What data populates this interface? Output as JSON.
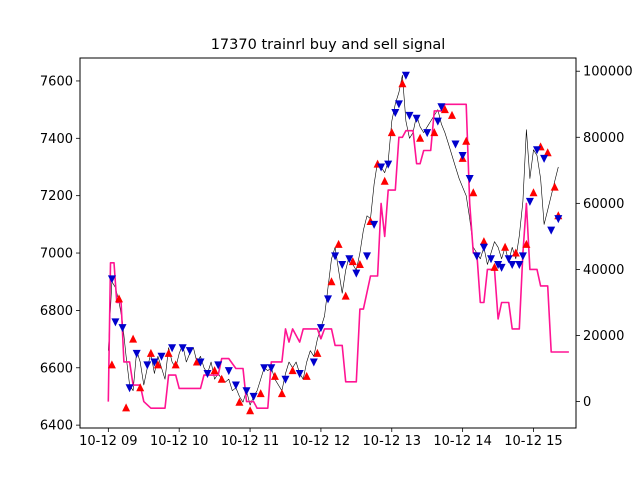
{
  "chart_data": {
    "type": "line",
    "title": "17370 trainrl buy and sell signal",
    "x_tick_labels": [
      "10-12 09",
      "10-12 10",
      "10-12 11",
      "10-12 12",
      "10-12 13",
      "10-12 14",
      "10-12 15"
    ],
    "x_ticks": [
      9,
      10,
      11,
      12,
      13,
      14,
      15
    ],
    "xlim": [
      8.6,
      15.6
    ],
    "y_left": {
      "ylim": [
        6390,
        7680
      ],
      "ticks": [
        6400,
        6600,
        6800,
        7000,
        7200,
        7400,
        7600
      ]
    },
    "y_right": {
      "ylim": [
        -8000,
        104000
      ],
      "ticks": [
        0,
        20000,
        40000,
        60000,
        80000,
        100000
      ]
    },
    "colors": {
      "price": "#000000",
      "position": "#ff1493",
      "buy": "#ff0000",
      "sell": "#0000cc"
    },
    "series": [
      {
        "axis": "left",
        "style": "thin-line",
        "color": "#000000",
        "points": [
          [
            9.0,
            6660
          ],
          [
            9.05,
            6900
          ],
          [
            9.1,
            6880
          ],
          [
            9.15,
            6830
          ],
          [
            9.2,
            6760
          ],
          [
            9.25,
            6640
          ],
          [
            9.3,
            6540
          ],
          [
            9.35,
            6520
          ],
          [
            9.4,
            6660
          ],
          [
            9.45,
            6620
          ],
          [
            9.5,
            6540
          ],
          [
            9.55,
            6600
          ],
          [
            9.6,
            6650
          ],
          [
            9.65,
            6580
          ],
          [
            9.7,
            6640
          ],
          [
            9.75,
            6600
          ],
          [
            9.8,
            6560
          ],
          [
            9.85,
            6670
          ],
          [
            9.9,
            6620
          ],
          [
            9.95,
            6600
          ],
          [
            10.0,
            6650
          ],
          [
            10.05,
            6680
          ],
          [
            10.1,
            6620
          ],
          [
            10.15,
            6650
          ],
          [
            10.2,
            6670
          ],
          [
            10.25,
            6620
          ],
          [
            10.3,
            6640
          ],
          [
            10.35,
            6600
          ],
          [
            10.4,
            6580
          ],
          [
            10.45,
            6620
          ],
          [
            10.5,
            6560
          ],
          [
            10.55,
            6580
          ],
          [
            10.6,
            6560
          ],
          [
            10.65,
            6550
          ],
          [
            10.7,
            6560
          ],
          [
            10.75,
            6520
          ],
          [
            10.8,
            6530
          ],
          [
            10.85,
            6500
          ],
          [
            10.9,
            6480
          ],
          [
            10.95,
            6520
          ],
          [
            11.0,
            6470
          ],
          [
            11.05,
            6500
          ],
          [
            11.1,
            6520
          ],
          [
            11.15,
            6560
          ],
          [
            11.2,
            6600
          ],
          [
            11.25,
            6590
          ],
          [
            11.3,
            6600
          ],
          [
            11.35,
            6560
          ],
          [
            11.4,
            6540
          ],
          [
            11.45,
            6520
          ],
          [
            11.5,
            6580
          ],
          [
            11.55,
            6620
          ],
          [
            11.6,
            6600
          ],
          [
            11.65,
            6620
          ],
          [
            11.7,
            6580
          ],
          [
            11.75,
            6560
          ],
          [
            11.8,
            6620
          ],
          [
            11.85,
            6660
          ],
          [
            11.9,
            6640
          ],
          [
            11.95,
            6700
          ],
          [
            12.0,
            6740
          ],
          [
            12.05,
            6780
          ],
          [
            12.1,
            6880
          ],
          [
            12.15,
            6980
          ],
          [
            12.2,
            7020
          ],
          [
            12.25,
            6940
          ],
          [
            12.3,
            6860
          ],
          [
            12.35,
            6940
          ],
          [
            12.4,
            6990
          ],
          [
            12.45,
            6960
          ],
          [
            12.5,
            6940
          ],
          [
            12.55,
            7000
          ],
          [
            12.6,
            7080
          ],
          [
            12.65,
            7130
          ],
          [
            12.7,
            7120
          ],
          [
            12.75,
            7240
          ],
          [
            12.8,
            7320
          ],
          [
            12.85,
            7300
          ],
          [
            12.9,
            7280
          ],
          [
            12.95,
            7320
          ],
          [
            13.0,
            7460
          ],
          [
            13.05,
            7520
          ],
          [
            13.1,
            7560
          ],
          [
            13.15,
            7620
          ],
          [
            13.2,
            7460
          ],
          [
            13.25,
            7400
          ],
          [
            13.3,
            7420
          ],
          [
            13.35,
            7480
          ],
          [
            13.4,
            7440
          ],
          [
            13.45,
            7420
          ],
          [
            13.5,
            7440
          ],
          [
            13.55,
            7460
          ],
          [
            13.6,
            7480
          ],
          [
            13.65,
            7500
          ],
          [
            13.7,
            7450
          ],
          [
            13.75,
            7420
          ],
          [
            13.8,
            7380
          ],
          [
            13.85,
            7340
          ],
          [
            13.9,
            7300
          ],
          [
            13.95,
            7260
          ],
          [
            14.0,
            7230
          ],
          [
            14.05,
            7200
          ],
          [
            14.1,
            7120
          ],
          [
            14.15,
            7020
          ],
          [
            14.2,
            7000
          ],
          [
            14.25,
            6980
          ],
          [
            14.3,
            7020
          ],
          [
            14.35,
            6960
          ],
          [
            14.4,
            7000
          ],
          [
            14.45,
            7040
          ],
          [
            14.5,
            7020
          ],
          [
            14.55,
            6980
          ],
          [
            14.6,
            7020
          ],
          [
            14.65,
            6970
          ],
          [
            14.7,
            7020
          ],
          [
            14.75,
            6980
          ],
          [
            14.8,
            7060
          ],
          [
            14.85,
            7180
          ],
          [
            14.9,
            7430
          ],
          [
            14.95,
            7260
          ],
          [
            15.0,
            7360
          ],
          [
            15.05,
            7340
          ],
          [
            15.1,
            7260
          ],
          [
            15.15,
            7100
          ],
          [
            15.2,
            7150
          ],
          [
            15.25,
            7200
          ],
          [
            15.3,
            7250
          ],
          [
            15.35,
            7300
          ]
        ]
      },
      {
        "axis": "right",
        "style": "position-line",
        "color": "#ff1493",
        "points": [
          [
            9.0,
            0
          ],
          [
            9.03,
            42000
          ],
          [
            9.08,
            42000
          ],
          [
            9.12,
            30000
          ],
          [
            9.18,
            30000
          ],
          [
            9.22,
            12000
          ],
          [
            9.3,
            12000
          ],
          [
            9.35,
            5000
          ],
          [
            9.45,
            5000
          ],
          [
            9.5,
            0
          ],
          [
            9.6,
            -2000
          ],
          [
            9.8,
            -2000
          ],
          [
            9.85,
            8000
          ],
          [
            9.95,
            8000
          ],
          [
            10.0,
            4000
          ],
          [
            10.3,
            4000
          ],
          [
            10.35,
            8000
          ],
          [
            10.55,
            8000
          ],
          [
            10.6,
            13000
          ],
          [
            10.7,
            13000
          ],
          [
            10.8,
            10000
          ],
          [
            10.9,
            10000
          ],
          [
            10.95,
            0
          ],
          [
            11.05,
            0
          ],
          [
            11.1,
            -2000
          ],
          [
            11.25,
            -2000
          ],
          [
            11.3,
            12000
          ],
          [
            11.45,
            12000
          ],
          [
            11.5,
            22000
          ],
          [
            11.55,
            18000
          ],
          [
            11.6,
            22000
          ],
          [
            11.7,
            18000
          ],
          [
            11.75,
            22000
          ],
          [
            11.95,
            22000
          ],
          [
            12.0,
            19000
          ],
          [
            12.05,
            22000
          ],
          [
            12.15,
            22000
          ],
          [
            12.2,
            17000
          ],
          [
            12.3,
            17000
          ],
          [
            12.35,
            6000
          ],
          [
            12.5,
            6000
          ],
          [
            12.55,
            28000
          ],
          [
            12.6,
            28000
          ],
          [
            12.7,
            38000
          ],
          [
            12.8,
            38000
          ],
          [
            12.85,
            60000
          ],
          [
            12.9,
            50000
          ],
          [
            12.95,
            64000
          ],
          [
            13.05,
            64000
          ],
          [
            13.1,
            80000
          ],
          [
            13.15,
            80000
          ],
          [
            13.2,
            82000
          ],
          [
            13.3,
            82000
          ],
          [
            13.35,
            72000
          ],
          [
            13.4,
            72000
          ],
          [
            13.45,
            76000
          ],
          [
            13.55,
            76000
          ],
          [
            13.6,
            88000
          ],
          [
            13.7,
            88000
          ],
          [
            13.75,
            90000
          ],
          [
            13.85,
            90000
          ],
          [
            13.95,
            90000
          ],
          [
            14.05,
            90000
          ],
          [
            14.1,
            60000
          ],
          [
            14.15,
            45000
          ],
          [
            14.2,
            45000
          ],
          [
            14.25,
            30000
          ],
          [
            14.3,
            30000
          ],
          [
            14.35,
            40000
          ],
          [
            14.45,
            40000
          ],
          [
            14.5,
            25000
          ],
          [
            14.55,
            30000
          ],
          [
            14.65,
            30000
          ],
          [
            14.7,
            22000
          ],
          [
            14.8,
            22000
          ],
          [
            14.85,
            45000
          ],
          [
            14.9,
            60000
          ],
          [
            14.95,
            40000
          ],
          [
            15.05,
            40000
          ],
          [
            15.1,
            35000
          ],
          [
            15.2,
            35000
          ],
          [
            15.25,
            15000
          ],
          [
            15.5,
            15000
          ]
        ]
      }
    ],
    "buy_points": [
      [
        9.05,
        6610
      ],
      [
        9.15,
        6840
      ],
      [
        9.25,
        6460
      ],
      [
        9.35,
        6700
      ],
      [
        9.45,
        6530
      ],
      [
        9.6,
        6650
      ],
      [
        9.7,
        6610
      ],
      [
        9.85,
        6650
      ],
      [
        9.95,
        6610
      ],
      [
        10.25,
        6620
      ],
      [
        10.5,
        6590
      ],
      [
        10.6,
        6560
      ],
      [
        10.85,
        6480
      ],
      [
        11.0,
        6450
      ],
      [
        11.15,
        6510
      ],
      [
        11.35,
        6570
      ],
      [
        11.45,
        6510
      ],
      [
        11.6,
        6590
      ],
      [
        11.8,
        6570
      ],
      [
        11.95,
        6650
      ],
      [
        12.15,
        6900
      ],
      [
        12.25,
        7030
      ],
      [
        12.35,
        6850
      ],
      [
        12.45,
        6970
      ],
      [
        12.55,
        6960
      ],
      [
        12.7,
        7110
      ],
      [
        12.8,
        7310
      ],
      [
        12.9,
        7250
      ],
      [
        13.0,
        7420
      ],
      [
        13.15,
        7590
      ],
      [
        13.4,
        7400
      ],
      [
        13.6,
        7420
      ],
      [
        13.75,
        7500
      ],
      [
        13.85,
        7480
      ],
      [
        14.0,
        7330
      ],
      [
        14.05,
        7390
      ],
      [
        14.15,
        7210
      ],
      [
        14.3,
        7040
      ],
      [
        14.45,
        6950
      ],
      [
        14.6,
        7020
      ],
      [
        14.75,
        7000
      ],
      [
        14.9,
        7030
      ],
      [
        15.0,
        7210
      ],
      [
        15.1,
        7370
      ],
      [
        15.2,
        7350
      ],
      [
        15.3,
        7230
      ],
      [
        15.35,
        7130
      ]
    ],
    "sell_points": [
      [
        9.05,
        6910
      ],
      [
        9.1,
        6760
      ],
      [
        9.2,
        6740
      ],
      [
        9.3,
        6530
      ],
      [
        9.4,
        6650
      ],
      [
        9.55,
        6610
      ],
      [
        9.65,
        6620
      ],
      [
        9.75,
        6640
      ],
      [
        9.9,
        6670
      ],
      [
        10.05,
        6670
      ],
      [
        10.15,
        6660
      ],
      [
        10.3,
        6620
      ],
      [
        10.4,
        6580
      ],
      [
        10.55,
        6610
      ],
      [
        10.7,
        6590
      ],
      [
        10.8,
        6540
      ],
      [
        10.95,
        6520
      ],
      [
        11.05,
        6500
      ],
      [
        11.2,
        6600
      ],
      [
        11.3,
        6600
      ],
      [
        11.5,
        6560
      ],
      [
        11.7,
        6580
      ],
      [
        11.9,
        6620
      ],
      [
        12.0,
        6740
      ],
      [
        12.1,
        6840
      ],
      [
        12.2,
        6990
      ],
      [
        12.3,
        6960
      ],
      [
        12.4,
        6980
      ],
      [
        12.5,
        6930
      ],
      [
        12.65,
        6990
      ],
      [
        12.75,
        7100
      ],
      [
        12.85,
        7300
      ],
      [
        12.95,
        7310
      ],
      [
        13.05,
        7490
      ],
      [
        13.1,
        7520
      ],
      [
        13.2,
        7620
      ],
      [
        13.25,
        7480
      ],
      [
        13.35,
        7470
      ],
      [
        13.5,
        7420
      ],
      [
        13.65,
        7460
      ],
      [
        13.7,
        7510
      ],
      [
        13.9,
        7380
      ],
      [
        14.0,
        7340
      ],
      [
        14.1,
        7260
      ],
      [
        14.2,
        6990
      ],
      [
        14.3,
        7020
      ],
      [
        14.4,
        6980
      ],
      [
        14.5,
        6960
      ],
      [
        14.55,
        6950
      ],
      [
        14.65,
        6980
      ],
      [
        14.7,
        6960
      ],
      [
        14.8,
        6960
      ],
      [
        14.85,
        6990
      ],
      [
        14.95,
        7180
      ],
      [
        15.05,
        7360
      ],
      [
        15.15,
        7330
      ],
      [
        15.25,
        7080
      ],
      [
        15.35,
        7120
      ]
    ]
  }
}
